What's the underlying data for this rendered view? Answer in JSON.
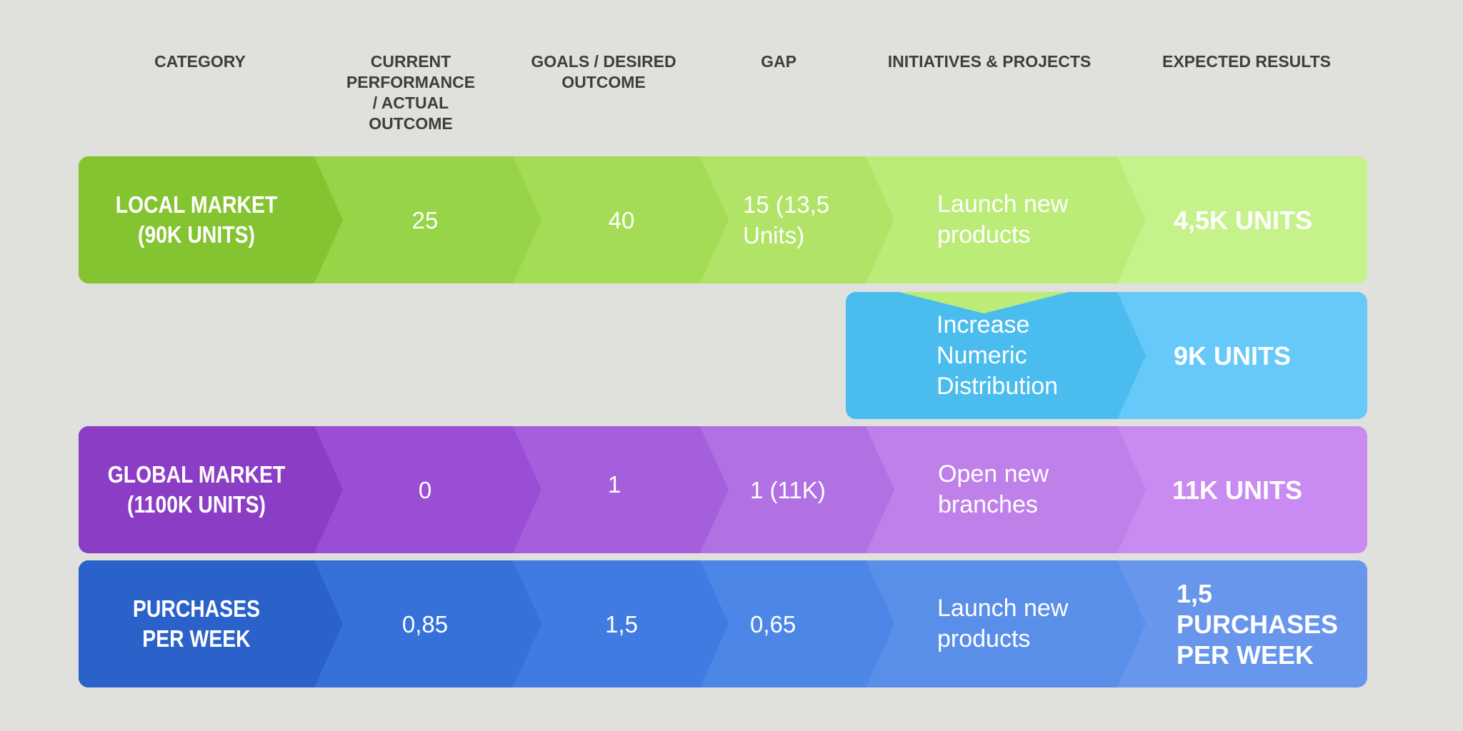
{
  "headers": {
    "category": "CATEGORY",
    "current": [
      "CURRENT",
      "PERFORMANCE",
      "/ ACTUAL",
      "OUTCOME"
    ],
    "goals": [
      "GOALS / DESIRED",
      "OUTCOME"
    ],
    "gap": "GAP",
    "initiatives": "INITIATIVES & PROJECTS",
    "expected": "EXPECTED RESULTS"
  },
  "rows": {
    "local": {
      "category": [
        "LOCAL MARKET",
        "(90K UNITS)"
      ],
      "current": "25",
      "goal": "40",
      "gap": [
        "15 (13,5",
        "Units)"
      ],
      "initiative": [
        "Launch new",
        "products"
      ],
      "result": [
        "4,5K UNITS"
      ],
      "colors": [
        "#84c430",
        "#98d448",
        "#a4dc55",
        "#b0e366",
        "#bbec78",
        "#c6f28b"
      ]
    },
    "local_sub": {
      "initiative": [
        "Increase",
        "Numeric",
        "Distribution"
      ],
      "result": [
        "9K UNITS"
      ],
      "colors": [
        "#4bbcee",
        "#66c9fa"
      ]
    },
    "global": {
      "category": [
        "GLOBAL MARKET",
        "(1100K UNITS)"
      ],
      "current": "0",
      "goal": "1",
      "gap": [
        "1 (11K)"
      ],
      "initiative": [
        "Open new",
        "branches"
      ],
      "result": [
        "11K UNITS"
      ],
      "colors": [
        "#8c3dc6",
        "#9a4dd5",
        "#a65fdc",
        "#b271e3",
        "#bf80ea",
        "#c98bf1"
      ]
    },
    "purchases": {
      "category": [
        "PURCHASES",
        "PER WEEK"
      ],
      "current": "0,85",
      "goal": "1,5",
      "gap": [
        "0,65"
      ],
      "initiative": [
        "Launch new",
        "products"
      ],
      "result": [
        "1,5",
        "PURCHASES",
        "PER WEEK"
      ],
      "colors": [
        "#2b62c9",
        "#3670d9",
        "#3f7be0",
        "#4c86e6",
        "#5a8fe9",
        "#6896ec"
      ]
    }
  }
}
